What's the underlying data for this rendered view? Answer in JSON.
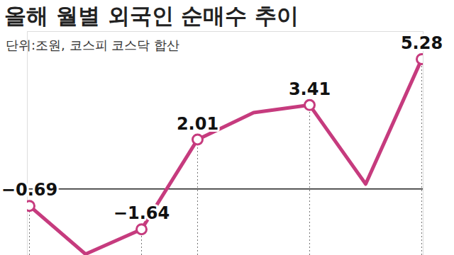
{
  "chart_data": {
    "type": "line",
    "title": "올해 월별 외국인 순매수 추이",
    "subtitle": "단위:조원, 코스피 코스닥 합산",
    "categories": [
      null,
      null,
      null,
      null,
      null,
      null,
      null,
      null
    ],
    "values": [
      -0.69,
      -2.65,
      -1.64,
      2.01,
      3.1,
      3.41,
      0.2,
      5.28
    ],
    "value_labels": [
      "−0.69",
      null,
      "−1.64",
      "2.01",
      null,
      "3.41",
      null,
      "5.28"
    ],
    "data_labels": true,
    "color": "#c63b7e",
    "marker": "circle",
    "ylim": [
      -2.7,
      6.4
    ],
    "yticks": [
      0
    ],
    "tick_labels": false
  }
}
